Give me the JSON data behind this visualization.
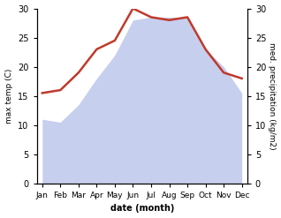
{
  "months": [
    "Jan",
    "Feb",
    "Mar",
    "Apr",
    "May",
    "Jun",
    "Jul",
    "Aug",
    "Sep",
    "Oct",
    "Nov",
    "Dec"
  ],
  "x": [
    0,
    1,
    2,
    3,
    4,
    5,
    6,
    7,
    8,
    9,
    10,
    11
  ],
  "temp": [
    15.5,
    16.0,
    19.0,
    23.0,
    24.5,
    30.0,
    28.5,
    28.0,
    28.5,
    23.0,
    19.0,
    18.0
  ],
  "precipitation": [
    11.0,
    10.5,
    13.5,
    18.0,
    22.0,
    28.0,
    28.5,
    28.5,
    28.5,
    23.0,
    20.0,
    15.5
  ],
  "temp_color": "#c0392b",
  "precip_fill_color": "#b3c0e8",
  "precip_fill_alpha": 0.75,
  "ylim": [
    0,
    30
  ],
  "xlabel": "date (month)",
  "ylabel_left": "max temp (C)",
  "ylabel_right": "med. precipitation (kg/m2)",
  "temp_linewidth": 1.8,
  "background_color": "#ffffff"
}
